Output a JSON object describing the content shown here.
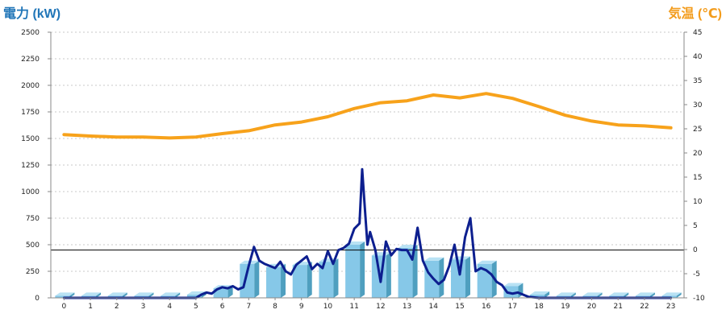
{
  "chart_data": {
    "type": "bar",
    "title_left": "電力 (kW)",
    "title_right": "気温 (℃)",
    "colors": {
      "title_left": "#2176b8",
      "title_right": "#f39c1c",
      "bar_front": "#86c8e8",
      "bar_side": "#4f9fbf",
      "bar_top": "#b9e2f4",
      "power_line": "#0d1f8f",
      "temperature_line": "#f7a21b",
      "reference_line": "#000000"
    },
    "categories": [
      "0",
      "1",
      "2",
      "3",
      "4",
      "5",
      "6",
      "7",
      "8",
      "9",
      "10",
      "11",
      "12",
      "13",
      "14",
      "15",
      "16",
      "17",
      "18",
      "19",
      "20",
      "21",
      "22",
      "23"
    ],
    "y_left": {
      "ticks": [
        0,
        250,
        500,
        750,
        1000,
        1250,
        1500,
        1750,
        2000,
        2250,
        2500
      ],
      "ylim": [
        0,
        2500
      ]
    },
    "y_right": {
      "ticks": [
        -10,
        -5,
        0,
        5,
        10,
        15,
        20,
        25,
        30,
        35,
        40,
        45
      ],
      "ylim": [
        -10,
        45
      ]
    },
    "reference_value": 450,
    "grid": true,
    "bars": {
      "axis": "left",
      "values": [
        20,
        20,
        20,
        20,
        20,
        30,
        90,
        320,
        290,
        310,
        340,
        500,
        400,
        470,
        350,
        360,
        320,
        110,
        30,
        20,
        20,
        20,
        20,
        20
      ]
    },
    "power_line": {
      "axis": "left",
      "x": [
        0,
        1,
        2,
        3,
        4,
        5,
        5.2,
        5.4,
        5.6,
        5.8,
        6,
        6.2,
        6.4,
        6.6,
        6.8,
        7,
        7.2,
        7.4,
        7.6,
        7.8,
        8,
        8.2,
        8.4,
        8.6,
        8.8,
        9,
        9.2,
        9.4,
        9.6,
        9.8,
        10,
        10.2,
        10.4,
        10.6,
        10.8,
        11,
        11.2,
        11.3,
        11.4,
        11.5,
        11.6,
        11.8,
        12,
        12.2,
        12.4,
        12.6,
        12.8,
        13,
        13.2,
        13.4,
        13.6,
        13.8,
        14,
        14.2,
        14.4,
        14.6,
        14.8,
        15,
        15.2,
        15.4,
        15.6,
        15.8,
        16,
        16.2,
        16.4,
        16.6,
        16.8,
        17,
        17.2,
        17.4,
        17.6,
        18,
        19,
        20,
        21,
        22,
        23
      ],
      "values": [
        0,
        0,
        0,
        0,
        0,
        0,
        30,
        50,
        40,
        80,
        100,
        90,
        110,
        80,
        100,
        300,
        480,
        350,
        320,
        300,
        280,
        340,
        250,
        220,
        310,
        350,
        390,
        270,
        320,
        280,
        440,
        320,
        450,
        470,
        510,
        650,
        700,
        1210,
        850,
        500,
        620,
        450,
        150,
        530,
        400,
        460,
        450,
        450,
        360,
        660,
        350,
        240,
        180,
        130,
        170,
        300,
        500,
        220,
        570,
        750,
        250,
        280,
        260,
        220,
        150,
        120,
        50,
        40,
        50,
        30,
        10,
        0,
        0,
        0,
        0,
        0,
        0
      ]
    },
    "temperature_line": {
      "axis": "right",
      "x": [
        0,
        1,
        2,
        3,
        4,
        5,
        6,
        7,
        8,
        9,
        10,
        11,
        12,
        13,
        14,
        15,
        16,
        17,
        18,
        19,
        20,
        21,
        22,
        23
      ],
      "values": [
        23.8,
        23.5,
        23.3,
        23.3,
        23.1,
        23.3,
        24.0,
        24.6,
        25.8,
        26.4,
        27.5,
        29.2,
        30.4,
        30.8,
        32.0,
        31.4,
        32.3,
        31.3,
        29.6,
        27.8,
        26.6,
        25.8,
        25.6,
        25.2
      ]
    }
  }
}
